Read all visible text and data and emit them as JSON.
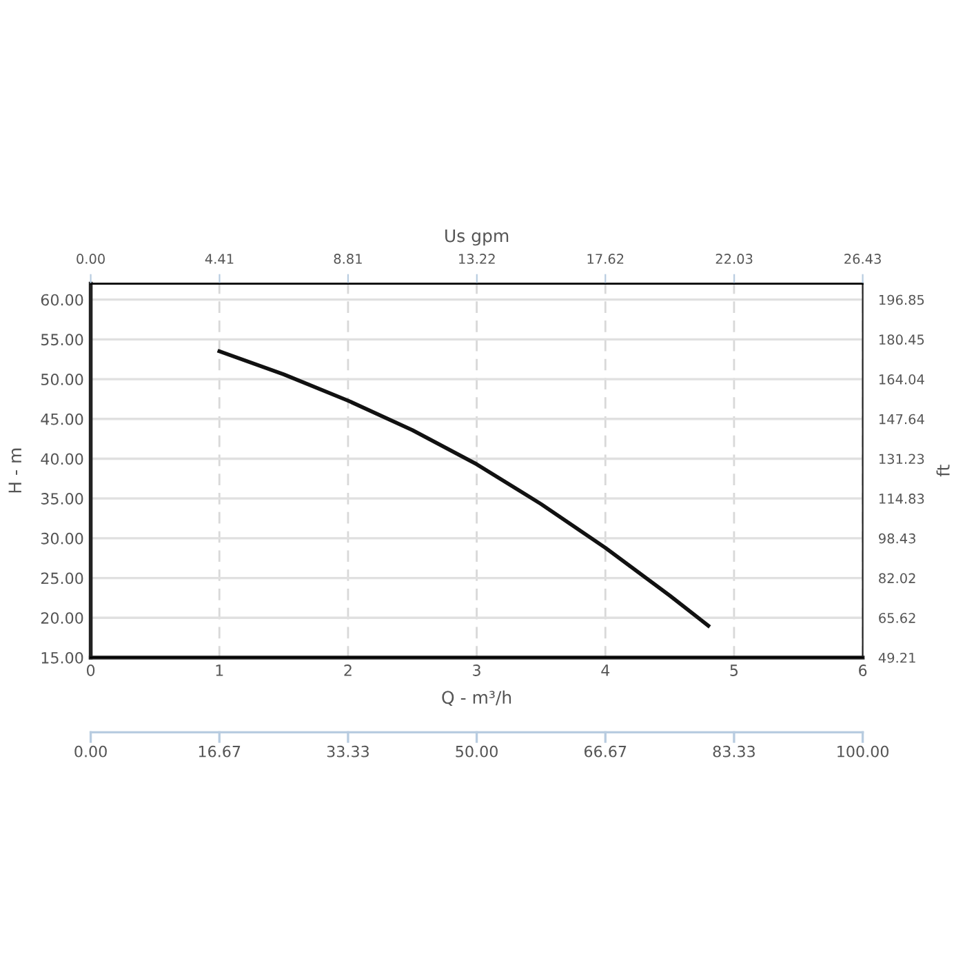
{
  "chart_data": {
    "type": "line",
    "xlabel": "Q - m³/h",
    "ylabel": "H - m",
    "y2label": "ft",
    "x2label": "Us gpm",
    "series": [
      {
        "color": "#111111",
        "x": [
          1,
          1.5,
          2,
          2.5,
          3,
          3.5,
          4,
          4.5,
          4.8
        ],
        "values": [
          53.5,
          50.6,
          47.3,
          43.6,
          39.3,
          34.3,
          28.8,
          22.8,
          19.0
        ]
      }
    ],
    "xlim": [
      0,
      6
    ],
    "xticks": [
      0,
      1,
      2,
      3,
      4,
      5,
      6
    ],
    "ylim": [
      15,
      62
    ],
    "yticks": [
      {
        "value": 15,
        "label": "15.00"
      },
      {
        "value": 20,
        "label": "20.00"
      },
      {
        "value": 25,
        "label": "25.00"
      },
      {
        "value": 30,
        "label": "30.00"
      },
      {
        "value": 35,
        "label": "35.00"
      },
      {
        "value": 40,
        "label": "40.00"
      },
      {
        "value": 45,
        "label": "45.00"
      },
      {
        "value": 50,
        "label": "50.00"
      },
      {
        "value": 55,
        "label": "55.00"
      },
      {
        "value": 60,
        "label": "60.00"
      }
    ],
    "y2lim": [
      49.21,
      203.41
    ],
    "y2ticks": [
      49.21,
      65.62,
      82.02,
      98.43,
      114.83,
      131.23,
      147.64,
      164.04,
      180.45,
      196.85
    ],
    "x2lim": [
      0,
      26.43
    ],
    "x2ticks": [
      {
        "value": 0,
        "label": "0.00"
      },
      4.41,
      8.81,
      13.22,
      17.62,
      22.03,
      26.43
    ],
    "annotations": [
      "0.00",
      "16.67",
      "33.33",
      "50.00",
      "66.67",
      "83.33",
      "100.00"
    ],
    "grid": true,
    "marker": "none",
    "line_style": "solid"
  }
}
